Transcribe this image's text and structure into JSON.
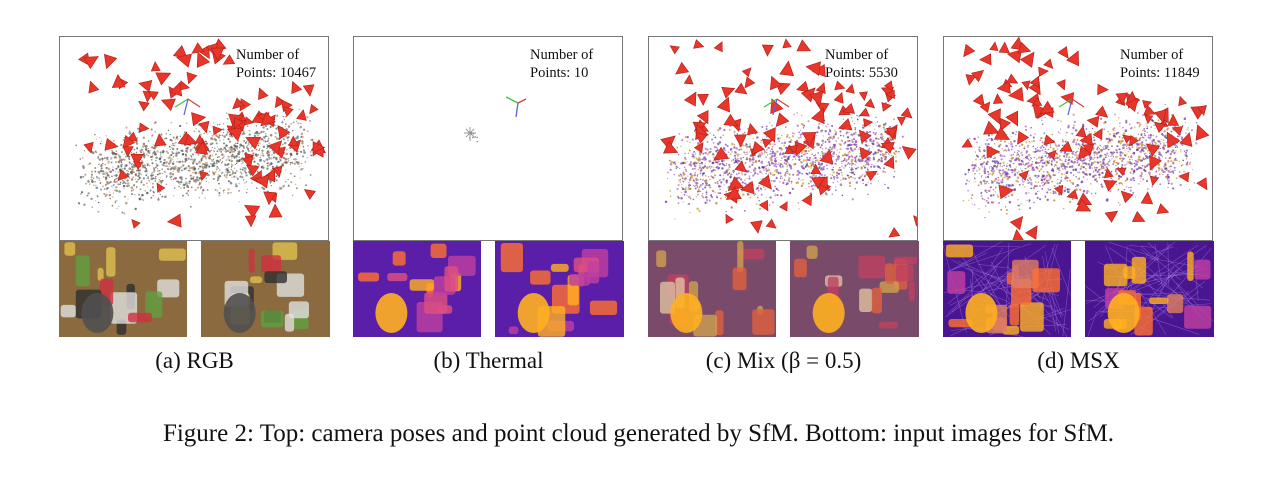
{
  "panels": [
    {
      "id": "rgb",
      "points_label": "Number of\nPoints: 10467",
      "caption": "(a)  RGB",
      "style": "rgb",
      "cameras": true
    },
    {
      "id": "thermal",
      "points_label": "Number of\nPoints: 10",
      "caption": "(b)  Thermal",
      "style": "thermal",
      "cameras": false
    },
    {
      "id": "mix",
      "points_label": "Number of\nPoints: 5530",
      "caption": "(c)  Mix (β = 0.5)",
      "style": "mix",
      "cameras": true
    },
    {
      "id": "msx",
      "points_label": "Number of\nPoints: 11849",
      "caption": "(d)  MSX",
      "style": "msx",
      "cameras": true
    }
  ],
  "figure_caption": "Figure 2: Top: camera poses and point cloud generated by SfM. Bottom: input images for SfM.",
  "colors": {
    "camera": "#e8362a",
    "rgb_bg": "#8a6a3e",
    "thermal_bg": "#5b1ea8",
    "thermal_hot": "#ffb020"
  }
}
